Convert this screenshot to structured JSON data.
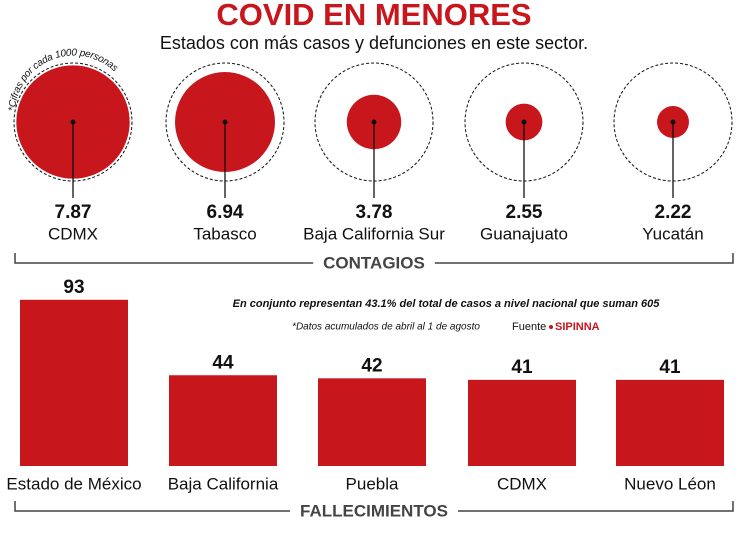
{
  "header": {
    "title": "COVID EN MENORES",
    "subtitle": "Estados con más casos y defunciones en este sector.",
    "note": "*Cifras por cada 1000 personas"
  },
  "chart_data": [
    {
      "type": "bubble",
      "title": "CONTAGIOS",
      "color": "#c8161d",
      "categories": [
        "CDMX",
        "Tabasco",
        "Baja California Sur",
        "Guanajuato",
        "Yucatán"
      ],
      "values": [
        7.87,
        6.94,
        3.78,
        2.55,
        2.22
      ]
    },
    {
      "type": "bar",
      "title": "FALLECIMIENTOS",
      "color": "#c8161d",
      "categories": [
        "Estado de México",
        "Baja California",
        "Puebla",
        "CDMX",
        "Nuevo Léon"
      ],
      "values": [
        93,
        44,
        42,
        41,
        41
      ],
      "annotations": [
        "En conjunto representan 43.1% del total de casos a nivel nacional que suman 605",
        "*Datos acumulados de abril al 1 de agosto"
      ],
      "source_label": "Fuente",
      "source": "SIPINNA"
    }
  ]
}
